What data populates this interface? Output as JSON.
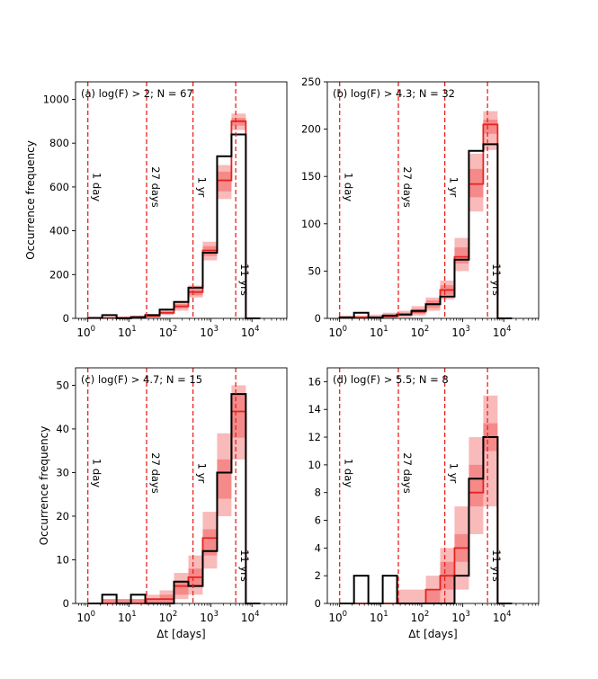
{
  "figure": {
    "xlabel": "Δt [days]",
    "ylabel": "Occurrence frequency",
    "x_ticks": [
      0,
      1,
      2,
      3,
      4
    ],
    "x_tick_base": "10",
    "x_range_log10": [
      -0.3,
      4.85
    ],
    "colors": {
      "observed": "#000000",
      "model": "#e8231f",
      "band_inner": "#f26a6a",
      "band_outer": "#f8b3b3",
      "vline": "#e8231f"
    }
  },
  "vlines": [
    {
      "x": 1,
      "label": "1 day"
    },
    {
      "x": 27,
      "label": "27 days"
    },
    {
      "x": 365,
      "label": "1 yr"
    },
    {
      "x": 4018,
      "label": "11 yrs"
    }
  ],
  "chart_data": [
    {
      "type": "step",
      "title": "(a) log(F) > 2; N = 67",
      "ylim": [
        0,
        1080
      ],
      "yticks": [
        0,
        200,
        400,
        600,
        800,
        1000
      ],
      "bin_edges_log10": [
        0,
        0.35,
        0.7,
        1.05,
        1.4,
        1.75,
        2.1,
        2.45,
        2.8,
        3.15,
        3.5,
        3.85,
        4.2
      ],
      "series": [
        {
          "name": "observed",
          "values": [
            2,
            15,
            0,
            5,
            15,
            40,
            75,
            140,
            300,
            740,
            840,
            0
          ]
        },
        {
          "name": "model",
          "values": [
            1,
            2,
            3,
            6,
            10,
            25,
            55,
            120,
            310,
            630,
            900,
            0
          ]
        },
        {
          "name": "band_inner_low",
          "values": [
            0,
            1,
            2,
            4,
            8,
            20,
            45,
            105,
            285,
            580,
            880,
            0
          ]
        },
        {
          "name": "band_inner_high",
          "values": [
            2,
            3,
            5,
            9,
            15,
            32,
            65,
            135,
            330,
            670,
            915,
            0
          ]
        },
        {
          "name": "band_outer_low",
          "values": [
            0,
            0,
            1,
            2,
            5,
            15,
            35,
            95,
            265,
            545,
            860,
            0
          ]
        },
        {
          "name": "band_outer_high",
          "values": [
            3,
            5,
            8,
            13,
            20,
            40,
            80,
            150,
            350,
            700,
            935,
            0
          ]
        }
      ]
    },
    {
      "type": "step",
      "title": "(b) log(F) > 4.3; N = 32",
      "ylim": [
        0,
        250
      ],
      "yticks": [
        0,
        50,
        100,
        150,
        200,
        250
      ],
      "bin_edges_log10": [
        0,
        0.35,
        0.7,
        1.05,
        1.4,
        1.75,
        2.1,
        2.45,
        2.8,
        3.15,
        3.5,
        3.85,
        4.2
      ],
      "series": [
        {
          "name": "observed",
          "values": [
            1,
            6,
            1,
            3,
            4,
            8,
            15,
            23,
            62,
            177,
            184,
            0
          ]
        },
        {
          "name": "model",
          "values": [
            1,
            1,
            1,
            2,
            4,
            7,
            15,
            30,
            65,
            142,
            205,
            0
          ]
        },
        {
          "name": "band_inner_low",
          "values": [
            0,
            0,
            1,
            1,
            3,
            5,
            11,
            25,
            58,
            128,
            195,
            0
          ]
        },
        {
          "name": "band_inner_high",
          "values": [
            2,
            2,
            2,
            4,
            6,
            10,
            19,
            35,
            75,
            158,
            210,
            0
          ]
        },
        {
          "name": "band_outer_low",
          "values": [
            0,
            0,
            0,
            0,
            1,
            3,
            8,
            20,
            50,
            113,
            178,
            0
          ]
        },
        {
          "name": "band_outer_high",
          "values": [
            3,
            3,
            4,
            6,
            8,
            13,
            22,
            40,
            85,
            174,
            219,
            0
          ]
        }
      ]
    },
    {
      "type": "step",
      "title": "(c) log(F) > 4.7; N = 15",
      "ylim": [
        0,
        54
      ],
      "yticks": [
        0,
        10,
        20,
        30,
        40,
        50
      ],
      "bin_edges_log10": [
        0,
        0.35,
        0.7,
        1.05,
        1.4,
        1.75,
        2.1,
        2.45,
        2.8,
        3.15,
        3.5,
        3.85,
        4.2
      ],
      "series": [
        {
          "name": "observed",
          "values": [
            0,
            2,
            0,
            2,
            0,
            0,
            5,
            4,
            12,
            30,
            48,
            0
          ]
        },
        {
          "name": "model",
          "values": [
            0,
            0,
            0,
            0,
            1,
            1,
            4,
            6,
            15,
            30,
            44,
            0
          ]
        },
        {
          "name": "band_inner_low",
          "values": [
            0,
            0,
            0,
            0,
            0,
            0,
            2,
            4,
            11,
            24,
            38,
            0
          ]
        },
        {
          "name": "band_inner_high",
          "values": [
            0,
            1,
            1,
            1,
            1,
            2,
            5,
            8,
            17,
            33,
            48,
            0
          ]
        },
        {
          "name": "band_outer_low",
          "values": [
            0,
            0,
            0,
            0,
            0,
            0,
            1,
            2,
            8,
            20,
            33,
            0
          ]
        },
        {
          "name": "band_outer_high",
          "values": [
            0,
            1,
            1,
            1,
            2,
            3,
            7,
            11,
            21,
            39,
            50,
            0
          ]
        }
      ]
    },
    {
      "type": "step",
      "title": "(d) log(F) > 5.5; N = 8",
      "ylim": [
        0,
        17
      ],
      "yticks": [
        0,
        2,
        4,
        6,
        8,
        10,
        12,
        14,
        16
      ],
      "bin_edges_log10": [
        0,
        0.35,
        0.7,
        1.05,
        1.4,
        1.75,
        2.1,
        2.45,
        2.8,
        3.15,
        3.5,
        3.85,
        4.2
      ],
      "series": [
        {
          "name": "observed",
          "values": [
            0,
            2,
            0,
            2,
            0,
            0,
            0,
            0,
            2,
            9,
            12,
            0
          ]
        },
        {
          "name": "model",
          "values": [
            0,
            0,
            0,
            0,
            0,
            0,
            1,
            2,
            4,
            8,
            12,
            0
          ]
        },
        {
          "name": "band_inner_low",
          "values": [
            0,
            0,
            0,
            0,
            0,
            0,
            0,
            1,
            3,
            7,
            11,
            0
          ]
        },
        {
          "name": "band_inner_high",
          "values": [
            0,
            0,
            0,
            0,
            0,
            0,
            1,
            3,
            5,
            10,
            13,
            0
          ]
        },
        {
          "name": "band_outer_low",
          "values": [
            0,
            0,
            0,
            0,
            0,
            0,
            0,
            0,
            1,
            5,
            7,
            0
          ]
        },
        {
          "name": "band_outer_high",
          "values": [
            0,
            0,
            0,
            0,
            1,
            1,
            2,
            4,
            7,
            12,
            15,
            0
          ]
        }
      ]
    }
  ]
}
